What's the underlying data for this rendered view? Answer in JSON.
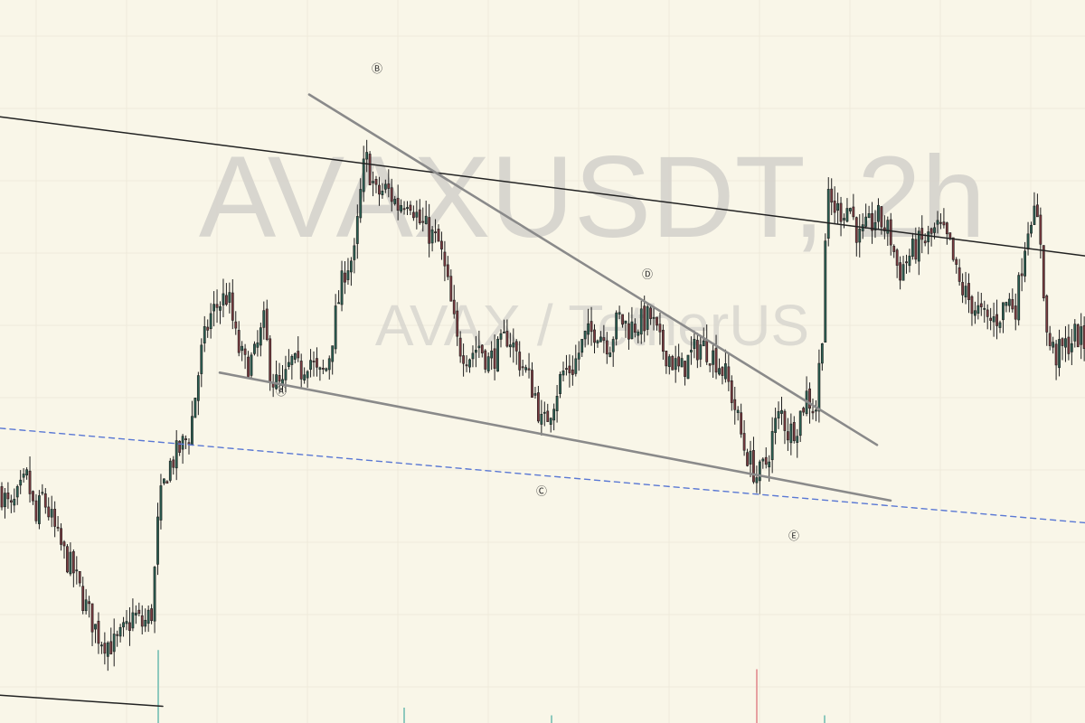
{
  "watermark": {
    "symbol_line": "AVAXUSDT, 2h",
    "description_line": "AVAX / TetherUS"
  },
  "colors": {
    "background": "#f9f6e8",
    "grid": "#eeeadb",
    "candle_up": "#2a5f52",
    "candle_down": "#7a3a3f",
    "wick": "#1e1e1e",
    "channel_line": "#222222",
    "triangle_line": "#8a8a8a",
    "support_dashed": "#5a78d4",
    "volume_up": "#8ec9bd",
    "volume_down": "#e6a0a0"
  },
  "chart_data": {
    "type": "candlestick",
    "title": "AVAXUSDT, 2h",
    "subtitle": "AVAX / TetherUS",
    "timeframe": "2h",
    "price_axis_visible": false,
    "time_axis_visible": false,
    "grid": true,
    "close_path_anchors": [
      [
        0,
        4.2
      ],
      [
        12,
        3.8
      ],
      [
        30,
        4.4
      ],
      [
        40,
        3.6
      ],
      [
        46,
        4.1
      ],
      [
        56,
        3.7
      ],
      [
        64,
        3.3
      ],
      [
        72,
        3.0
      ],
      [
        82,
        2.7
      ],
      [
        90,
        2.3
      ],
      [
        100,
        1.9
      ],
      [
        110,
        1.55
      ],
      [
        118,
        1.45
      ],
      [
        128,
        1.4
      ],
      [
        138,
        1.65
      ],
      [
        148,
        1.95
      ],
      [
        158,
        1.75
      ],
      [
        168,
        2.0
      ],
      [
        176,
        3.9
      ],
      [
        186,
        4.6
      ],
      [
        198,
        4.9
      ],
      [
        210,
        5.2
      ],
      [
        222,
        6.6
      ],
      [
        232,
        7.3
      ],
      [
        240,
        7.5
      ],
      [
        252,
        7.7
      ],
      [
        262,
        6.8
      ],
      [
        272,
        6.4
      ],
      [
        282,
        6.6
      ],
      [
        292,
        7.2
      ],
      [
        300,
        6.2
      ],
      [
        312,
        6.0
      ],
      [
        322,
        6.5
      ],
      [
        332,
        6.3
      ],
      [
        342,
        6.6
      ],
      [
        352,
        6.2
      ],
      [
        362,
        6.4
      ],
      [
        372,
        7.4
      ],
      [
        382,
        8.2
      ],
      [
        392,
        8.4
      ],
      [
        398,
        9.4
      ],
      [
        404,
        10.2
      ],
      [
        416,
        9.5
      ],
      [
        428,
        9.6
      ],
      [
        440,
        9.3
      ],
      [
        452,
        9.5
      ],
      [
        464,
        9.0
      ],
      [
        476,
        8.8
      ],
      [
        486,
        8.6
      ],
      [
        496,
        7.8
      ],
      [
        506,
        6.8
      ],
      [
        518,
        6.6
      ],
      [
        530,
        6.8
      ],
      [
        540,
        6.5
      ],
      [
        552,
        6.7
      ],
      [
        562,
        7.0
      ],
      [
        572,
        6.6
      ],
      [
        582,
        6.3
      ],
      [
        592,
        5.9
      ],
      [
        600,
        5.3
      ],
      [
        610,
        5.7
      ],
      [
        622,
        6.3
      ],
      [
        634,
        6.4
      ],
      [
        646,
        6.9
      ],
      [
        660,
        7.1
      ],
      [
        674,
        6.8
      ],
      [
        684,
        7.3
      ],
      [
        696,
        7.1
      ],
      [
        708,
        7.2
      ],
      [
        720,
        7.3
      ],
      [
        730,
        6.8
      ],
      [
        740,
        6.6
      ],
      [
        752,
        6.3
      ],
      [
        764,
        6.6
      ],
      [
        774,
        6.8
      ],
      [
        784,
        6.7
      ],
      [
        794,
        6.5
      ],
      [
        804,
        6.2
      ],
      [
        814,
        5.6
      ],
      [
        822,
        5.0
      ],
      [
        832,
        4.6
      ],
      [
        838,
        4.4
      ],
      [
        848,
        4.7
      ],
      [
        856,
        5.3
      ],
      [
        864,
        5.6
      ],
      [
        872,
        5.2
      ],
      [
        882,
        5.4
      ],
      [
        892,
        5.9
      ],
      [
        902,
        5.6
      ],
      [
        910,
        7.2
      ],
      [
        914,
        9.4
      ],
      [
        928,
        9.2
      ],
      [
        940,
        9.3
      ],
      [
        950,
        8.7
      ],
      [
        960,
        8.9
      ],
      [
        970,
        9.1
      ],
      [
        984,
        8.8
      ],
      [
        994,
        8.1
      ],
      [
        1006,
        8.4
      ],
      [
        1016,
        8.6
      ],
      [
        1026,
        8.7
      ],
      [
        1038,
        8.9
      ],
      [
        1050,
        8.6
      ],
      [
        1060,
        7.9
      ],
      [
        1072,
        7.6
      ],
      [
        1082,
        7.4
      ],
      [
        1092,
        7.2
      ],
      [
        1104,
        7.3
      ],
      [
        1114,
        7.6
      ],
      [
        1124,
        7.5
      ],
      [
        1132,
        8.5
      ],
      [
        1140,
        9.2
      ],
      [
        1150,
        8.9
      ],
      [
        1158,
        6.9
      ],
      [
        1168,
        6.6
      ],
      [
        1180,
        6.8
      ],
      [
        1190,
        7.0
      ],
      [
        1200,
        6.8
      ]
    ],
    "wave_labels": [
      {
        "label": "Ⓐ",
        "x": 311,
        "y": 6.0
      },
      {
        "label": "Ⓑ",
        "x": 417,
        "y": 11.8
      },
      {
        "label": "Ⓒ",
        "x": 599,
        "y": 4.2
      },
      {
        "label": "Ⓓ",
        "x": 716,
        "y": 8.1
      },
      {
        "label": "Ⓔ",
        "x": 878,
        "y": 3.4
      }
    ],
    "trendlines": [
      {
        "name": "upper-channel",
        "style": "solid",
        "points": [
          [
            0,
            10.9
          ],
          [
            1200,
            8.4
          ]
        ]
      },
      {
        "name": "lower-channel",
        "style": "solid",
        "points": [
          [
            0,
            0.5
          ],
          [
            180,
            0.3
          ]
        ]
      },
      {
        "name": "triangle-upper",
        "style": "solid",
        "points": [
          [
            342,
            11.3
          ],
          [
            970,
            5.0
          ]
        ]
      },
      {
        "name": "triangle-lower",
        "style": "solid",
        "points": [
          [
            243,
            6.3
          ],
          [
            985,
            4.0
          ]
        ]
      },
      {
        "name": "support",
        "style": "dashed",
        "points": [
          [
            0,
            5.3
          ],
          [
            1200,
            3.6
          ]
        ]
      }
    ],
    "volume_spikes": [
      {
        "x": 175,
        "direction": "up",
        "height": 0.95
      },
      {
        "x": 447,
        "direction": "up",
        "height": 0.2
      },
      {
        "x": 610,
        "direction": "up",
        "height": 0.1
      },
      {
        "x": 837,
        "direction": "down",
        "height": 0.7
      },
      {
        "x": 912,
        "direction": "up",
        "height": 0.1
      }
    ]
  }
}
